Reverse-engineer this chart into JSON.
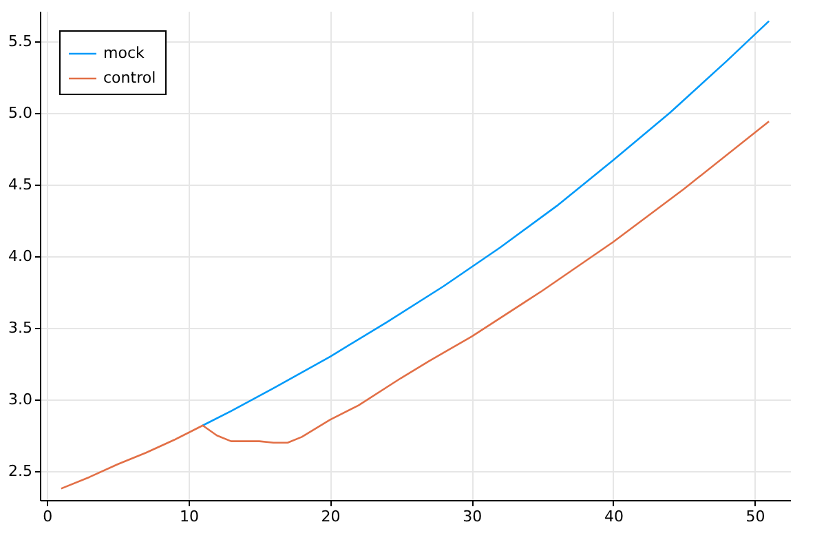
{
  "chart_data": {
    "type": "line",
    "x": [
      1,
      3,
      5,
      7,
      9,
      11,
      12,
      13,
      15,
      16,
      17,
      18,
      20,
      22,
      25,
      27,
      30,
      35,
      40,
      45,
      51
    ],
    "series": [
      {
        "name": "mock",
        "color": "#009af9",
        "x": [
          11,
          13,
          16,
          20,
          24,
          28,
          32,
          36,
          40,
          44,
          48,
          51
        ],
        "values": [
          2.82,
          2.92,
          3.08,
          3.3,
          3.54,
          3.79,
          4.06,
          4.35,
          4.67,
          5.0,
          5.36,
          5.64
        ]
      },
      {
        "name": "control",
        "color": "#e26f46",
        "values": [
          2.38,
          2.46,
          2.55,
          2.63,
          2.72,
          2.82,
          2.75,
          2.71,
          2.71,
          2.7,
          2.7,
          2.74,
          2.86,
          2.96,
          3.15,
          3.27,
          3.44,
          3.76,
          4.1,
          4.47,
          4.94
        ]
      }
    ],
    "xlim": [
      -0.5,
      52.5
    ],
    "xticks": [
      0,
      10,
      20,
      30,
      40,
      50
    ],
    "ylim": [
      2.3,
      5.71
    ],
    "yticks": [
      2.5,
      {
        "value": 3,
        "label": "3.0"
      },
      3.5,
      {
        "value": 4,
        "label": "4.0"
      },
      4.5,
      {
        "value": 5,
        "label": "5.0"
      },
      5.5
    ],
    "grid": true,
    "legend": "top left"
  }
}
